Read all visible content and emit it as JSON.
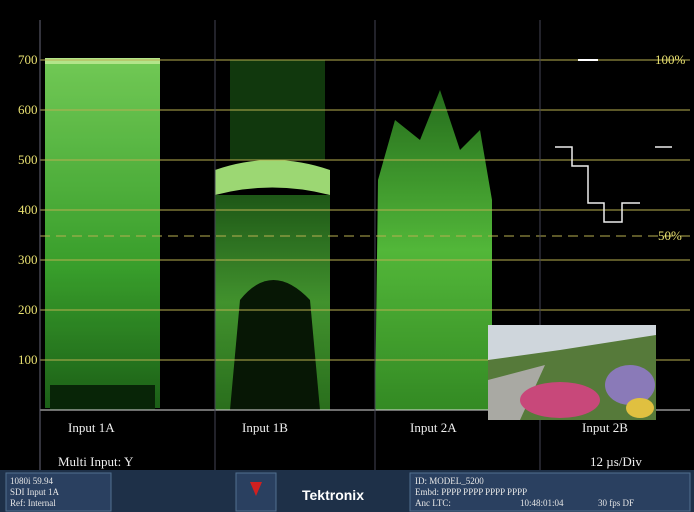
{
  "scale": {
    "labels": [
      "700",
      "600",
      "500",
      "400",
      "300",
      "200",
      "100"
    ],
    "top_label": "100%",
    "mid_label": "50%"
  },
  "inputs": [
    "Input 1A",
    "Input 1B",
    "Input 2A",
    "Input 2B"
  ],
  "mode": "Multi Input: Y",
  "timebase": "12 µs/Div",
  "status": {
    "format": "1080i 59.94",
    "input": "SDI Input 1A",
    "ref": "Ref: Internal",
    "brand": "Tektronix",
    "id": "ID: MODEL_5200",
    "embd": "Embd: PPPP PPPP PPPP PPPP",
    "anc": "Anc LTC:",
    "timecode": "10:48:01:04",
    "fps": "30 fps DF"
  }
}
